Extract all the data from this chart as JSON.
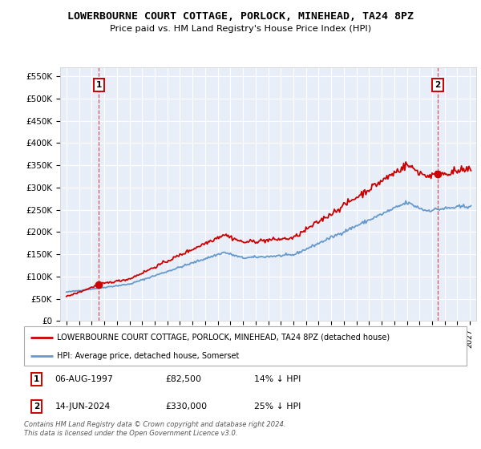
{
  "title": "LOWERBOURNE COURT COTTAGE, PORLOCK, MINEHEAD, TA24 8PZ",
  "subtitle": "Price paid vs. HM Land Registry's House Price Index (HPI)",
  "legend_label1": "LOWERBOURNE COURT COTTAGE, PORLOCK, MINEHEAD, TA24 8PZ (detached house)",
  "legend_label2": "HPI: Average price, detached house, Somerset",
  "annotation1_date": "06-AUG-1997",
  "annotation1_price": "£82,500",
  "annotation1_hpi": "14% ↓ HPI",
  "annotation2_date": "14-JUN-2024",
  "annotation2_price": "£330,000",
  "annotation2_hpi": "25% ↓ HPI",
  "footer": "Contains HM Land Registry data © Crown copyright and database right 2024.\nThis data is licensed under the Open Government Licence v3.0.",
  "point1_x": 1997.58,
  "point1_y": 82500,
  "point2_x": 2024.45,
  "point2_y": 330000,
  "ylim": [
    0,
    570000
  ],
  "xlim": [
    1994.5,
    2027.5
  ],
  "yticks": [
    0,
    50000,
    100000,
    150000,
    200000,
    250000,
    300000,
    350000,
    400000,
    450000,
    500000,
    550000
  ],
  "ytick_labels": [
    "£0",
    "£50K",
    "£100K",
    "£150K",
    "£200K",
    "£250K",
    "£300K",
    "£350K",
    "£400K",
    "£450K",
    "£500K",
    "£550K"
  ],
  "xticks": [
    1995,
    1996,
    1997,
    1998,
    1999,
    2000,
    2001,
    2002,
    2003,
    2004,
    2005,
    2006,
    2007,
    2008,
    2009,
    2010,
    2011,
    2012,
    2013,
    2014,
    2015,
    2016,
    2017,
    2018,
    2019,
    2020,
    2021,
    2022,
    2023,
    2024,
    2025,
    2026,
    2027
  ],
  "hpi_color": "#6699cc",
  "property_color": "#cc0000",
  "background_color": "#e8eef8",
  "grid_color": "#ffffff",
  "annotation_vline_color": "#cc0000"
}
